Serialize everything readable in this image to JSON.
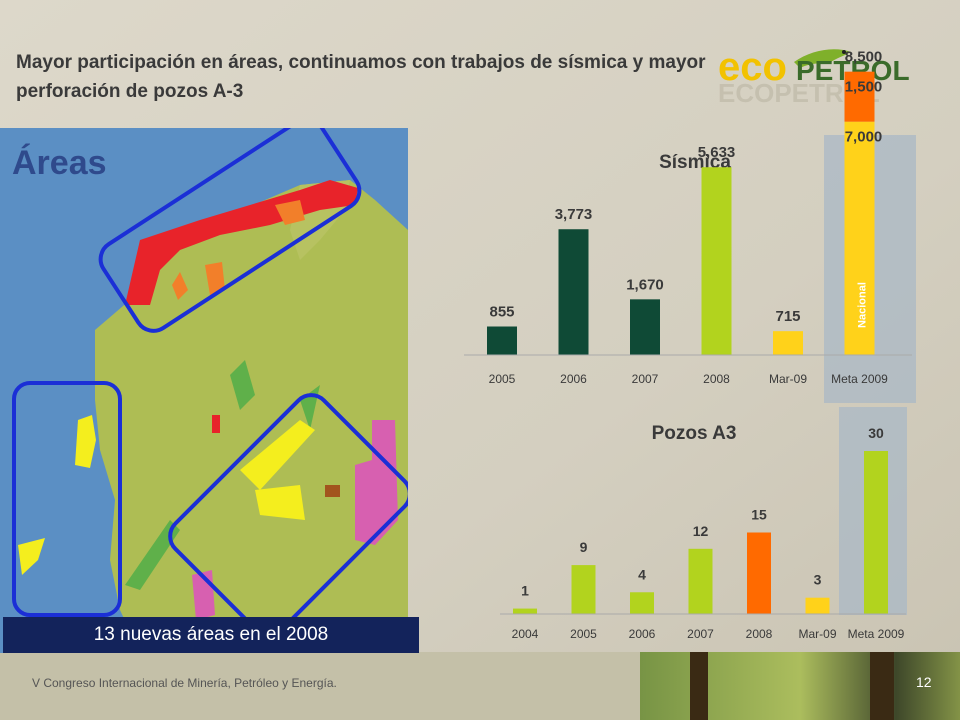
{
  "title": "Mayor participación en áreas, continuamos con trabajos de sísmica y mayor perforación de pozos A-3",
  "logo": {
    "eco": "eco",
    "petrol": "PETROL"
  },
  "map": {
    "title": "Áreas",
    "caption": "13 nuevas áreas en el 2008"
  },
  "footer": "V  Congreso Internacional  de Minería,  Petróleo y Energía.",
  "page_number": "12",
  "colors": {
    "dark_green": "#0f4a36",
    "lime": "#b2d31e",
    "yellow": "#ffd21a",
    "orange": "#ff6a00",
    "highlight": "#aab8c6"
  },
  "chart_data": [
    {
      "type": "bar",
      "title": "Sísmica",
      "categories": [
        "2005",
        "2006",
        "2007",
        "2008",
        "Mar-09",
        "Meta 2009"
      ],
      "values": [
        855,
        3773,
        1670,
        5633,
        715,
        8500
      ],
      "value_labels": [
        "855",
        "3,773",
        "1,670",
        "5,633",
        "715",
        "8,500"
      ],
      "stacked_last": {
        "segments": [
          {
            "label": "7,000",
            "value": 7000,
            "note": "Nacional"
          },
          {
            "label": "1,500",
            "value": 1500
          }
        ]
      },
      "ylim": [
        0,
        9000
      ],
      "grid": false
    },
    {
      "type": "bar",
      "title": "Pozos A3",
      "categories": [
        "2004",
        "2005",
        "2006",
        "2007",
        "2008",
        "Mar-09",
        "Meta 2009"
      ],
      "values": [
        1,
        9,
        4,
        12,
        15,
        3,
        30
      ],
      "value_labels": [
        "1",
        "9",
        "4",
        "12",
        "15",
        "3",
        "30"
      ],
      "ylim": [
        0,
        30
      ],
      "grid": false
    }
  ]
}
